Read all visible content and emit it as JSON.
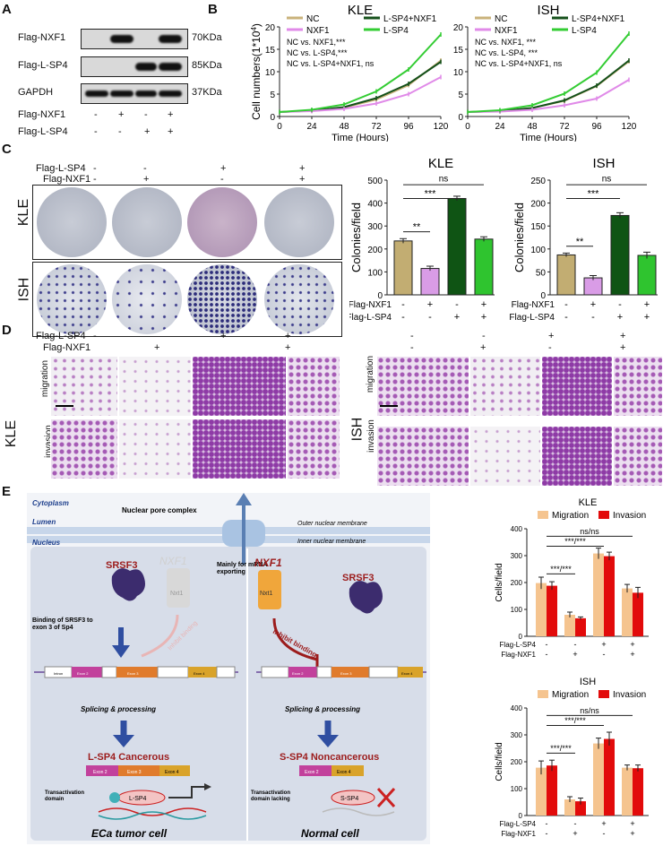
{
  "panels": {
    "A": "A",
    "B": "B",
    "C": "C",
    "D": "D",
    "E": "E"
  },
  "blot": {
    "rows": [
      {
        "label": "Flag-NXF1",
        "size": "70KDa",
        "bands": [
          false,
          true,
          false,
          true
        ]
      },
      {
        "label": "Flag-L-SP4",
        "size": "85KDa",
        "bands": [
          false,
          false,
          true,
          true
        ]
      },
      {
        "label": "GAPDH",
        "size": "37KDa",
        "bands": [
          true,
          true,
          true,
          true
        ]
      }
    ],
    "conditions": [
      {
        "label": "Flag-NXF1",
        "signs": [
          "-",
          "+",
          "-",
          "+"
        ]
      },
      {
        "label": "Flag-L-SP4",
        "signs": [
          "-",
          "-",
          "+",
          "+"
        ]
      }
    ]
  },
  "growth": {
    "legend": [
      "NC",
      "L-SP4+NXF1",
      "NXF1",
      "L-SP4"
    ],
    "ylabel": "Cell numbers(1*10",
    "ylabel_sup": "4",
    "ylabel_end": ")",
    "xlabel": "Time (Hours)",
    "kle": {
      "title": "KLE",
      "stats": [
        "NC  vs.  NXF1,***",
        "NC  vs.  L-SP4,***",
        "NC  vs.  L-SP4+NXF1, ns"
      ]
    },
    "ish": {
      "title": "ISH",
      "stats": [
        "NC  vs.  NXF1,  ***",
        "NC  vs.  L-SP4,  ***",
        "NC  vs.  L-SP4+NXF1, ns"
      ]
    }
  },
  "colony": {
    "flag_lsp4": [
      "-",
      "-",
      "+",
      "+"
    ],
    "flag_nxf1": [
      "-",
      "+",
      "-",
      "+"
    ],
    "lbl_lsp4": "Flag-L-SP4",
    "lbl_nxf1": "Flag-NXF1",
    "kle": "KLE",
    "ish": "ISH"
  },
  "colony_bars": {
    "ylabel": "Colonies/field",
    "kle": {
      "title": "KLE",
      "sig": [
        "**",
        "***",
        "ns"
      ]
    },
    "ish": {
      "title": "ISH",
      "sig": [
        "**",
        "***",
        "ns"
      ]
    },
    "row1": {
      "label": "Flag-NXF1",
      "signs": [
        "-",
        "+",
        "-",
        "+"
      ]
    },
    "row2": {
      "label": "Flag-L-SP4",
      "signs": [
        "-",
        "-",
        "+",
        "+"
      ]
    }
  },
  "transwell": {
    "lsp4": [
      "-",
      "-",
      "+",
      "+"
    ],
    "nxf1": [
      "-",
      "+",
      "-",
      "+"
    ],
    "lbl_lsp4": "Flag-L-SP4",
    "lbl_nxf1": "Flag-NXF1",
    "kle": "KLE",
    "ish": "ISH",
    "migration": "migration",
    "invasion": "invasion"
  },
  "diagram": {
    "cytoplasm": "Cytoplasm",
    "lumen": "Lumen",
    "nucleus": "Nucleus",
    "npc": "Nuclear pore complex",
    "outer": "Outer nuclear membrane",
    "inner": "Inner nuclear membrane",
    "export": "Mainly for mRNA\nexporting",
    "nxf1_left": "NXF1",
    "nxf1_right": "NXF1",
    "nxt1": "Nxt1",
    "srsf3": "SRSF3",
    "binding": "Binding of SRSF3 to\nexon 3 of Sp4",
    "inhibit": "Inhibit binding",
    "exons": [
      "Intron",
      "Exon 2",
      "Intron",
      "Exon 3",
      "Intron",
      "Exon 4",
      "Intron"
    ],
    "splicing": "Splicing & processing",
    "lsp4_title": "L-SP4  Cancerous",
    "ssp4_title": "S-SP4  Noncancerous",
    "ex2": "Exon 2",
    "ex3": "Exon 3",
    "ex4": "Exon 4",
    "trans_left": "Transactivation\ndomain",
    "trans_right": "Transactivation\ndomain lacking",
    "lsp4": "L-SP4",
    "ssp4": "S-SP4",
    "tumor": "ECa tumor cell",
    "normal": "Normal cell"
  },
  "mi_bars": {
    "ylabel": "Cells/field",
    "legend": [
      "Migration",
      "Invasion"
    ],
    "kle": {
      "title": "KLE",
      "sig": [
        "ns/ns",
        "***/***",
        "***/***"
      ]
    },
    "ish": {
      "title": "ISH",
      "sig": [
        "ns/ns",
        "***/***",
        "***/***"
      ]
    },
    "row1": {
      "label": "Flag-L-SP4",
      "signs": [
        "-",
        "-",
        "+",
        "+"
      ]
    },
    "row2": {
      "label": "Flag-NXF1",
      "signs": [
        "-",
        "+",
        "-",
        "+"
      ]
    }
  },
  "chart_data": [
    {
      "type": "line",
      "title": "KLE",
      "xlabel": "Time (Hours)",
      "ylabel": "Cell numbers(1*10^4)",
      "x": [
        0,
        24,
        48,
        72,
        96,
        120
      ],
      "xlim": [
        0,
        120
      ],
      "ylim": [
        0,
        20
      ],
      "series": [
        {
          "name": "NC",
          "values": [
            1,
            1.3,
            2,
            3.8,
            7,
            12.5
          ]
        },
        {
          "name": "L-SP4+NXF1",
          "values": [
            1,
            1.3,
            2.1,
            4.1,
            7.3,
            12.2
          ]
        },
        {
          "name": "NXF1",
          "values": [
            1,
            1.2,
            1.7,
            2.9,
            5,
            8.8
          ]
        },
        {
          "name": "L-SP4",
          "values": [
            1,
            1.5,
            2.7,
            5.6,
            10.5,
            18.3
          ]
        }
      ]
    },
    {
      "type": "line",
      "title": "ISH",
      "xlabel": "Time (Hours)",
      "ylabel": "Cell numbers(1*10^4)",
      "x": [
        0,
        24,
        48,
        72,
        96,
        120
      ],
      "xlim": [
        0,
        120
      ],
      "ylim": [
        0,
        20
      ],
      "series": [
        {
          "name": "NC",
          "values": [
            1,
            1.2,
            1.9,
            3.5,
            6.8,
            12.3
          ]
        },
        {
          "name": "L-SP4+NXF1",
          "values": [
            1,
            1.2,
            1.9,
            3.6,
            6.9,
            12.5
          ]
        },
        {
          "name": "NXF1",
          "values": [
            1,
            1.1,
            1.5,
            2.5,
            4,
            8.2
          ]
        },
        {
          "name": "L-SP4",
          "values": [
            1,
            1.4,
            2.5,
            5.1,
            9.8,
            18.5
          ]
        }
      ]
    },
    {
      "type": "bar",
      "title": "KLE",
      "ylabel": "Colonies/field",
      "ylim": [
        0,
        500
      ],
      "yticks": [
        0,
        100,
        200,
        300,
        400,
        500
      ],
      "values": [
        235,
        115,
        420,
        243
      ],
      "errors": [
        10,
        10,
        10,
        10
      ]
    },
    {
      "type": "bar",
      "title": "ISH",
      "ylabel": "Colonies/field",
      "ylim": [
        0,
        250
      ],
      "yticks": [
        0,
        50,
        100,
        150,
        200,
        250
      ],
      "values": [
        87,
        37,
        173,
        86
      ],
      "errors": [
        4,
        5,
        6,
        7
      ]
    },
    {
      "type": "bar",
      "title": "KLE",
      "ylabel": "Cells/field",
      "ylim": [
        0,
        400
      ],
      "yticks": [
        0,
        100,
        200,
        300,
        400
      ],
      "series": [
        {
          "name": "Migration",
          "values": [
            198,
            80,
            308,
            178
          ]
        },
        {
          "name": "Invasion",
          "values": [
            188,
            67,
            298,
            162
          ]
        }
      ],
      "errors": [
        [
          22,
          10,
          20,
          15
        ],
        [
          15,
          5,
          15,
          20
        ]
      ]
    },
    {
      "type": "bar",
      "title": "ISH",
      "ylabel": "Cells/field",
      "ylim": [
        0,
        400
      ],
      "yticks": [
        0,
        100,
        200,
        300,
        400
      ],
      "series": [
        {
          "name": "Migration",
          "values": [
            178,
            60,
            268,
            178
          ]
        },
        {
          "name": "Invasion",
          "values": [
            186,
            53,
            285,
            176
          ]
        }
      ],
      "errors": [
        [
          25,
          10,
          20,
          10
        ],
        [
          20,
          12,
          25,
          12
        ]
      ]
    }
  ],
  "colors": {
    "nc": "#c9b27b",
    "lsp4nxf1": "#14501a",
    "nxf1": "#e08ae8",
    "lsp4": "#33cc33",
    "tan": "#c2ad72",
    "pink": "#d99ce6",
    "dkgreen": "#0f5414",
    "green": "#2fc42f",
    "migration": "#f5c48f",
    "invasion": "#e20b0b",
    "dred": "#9c1c1c"
  }
}
